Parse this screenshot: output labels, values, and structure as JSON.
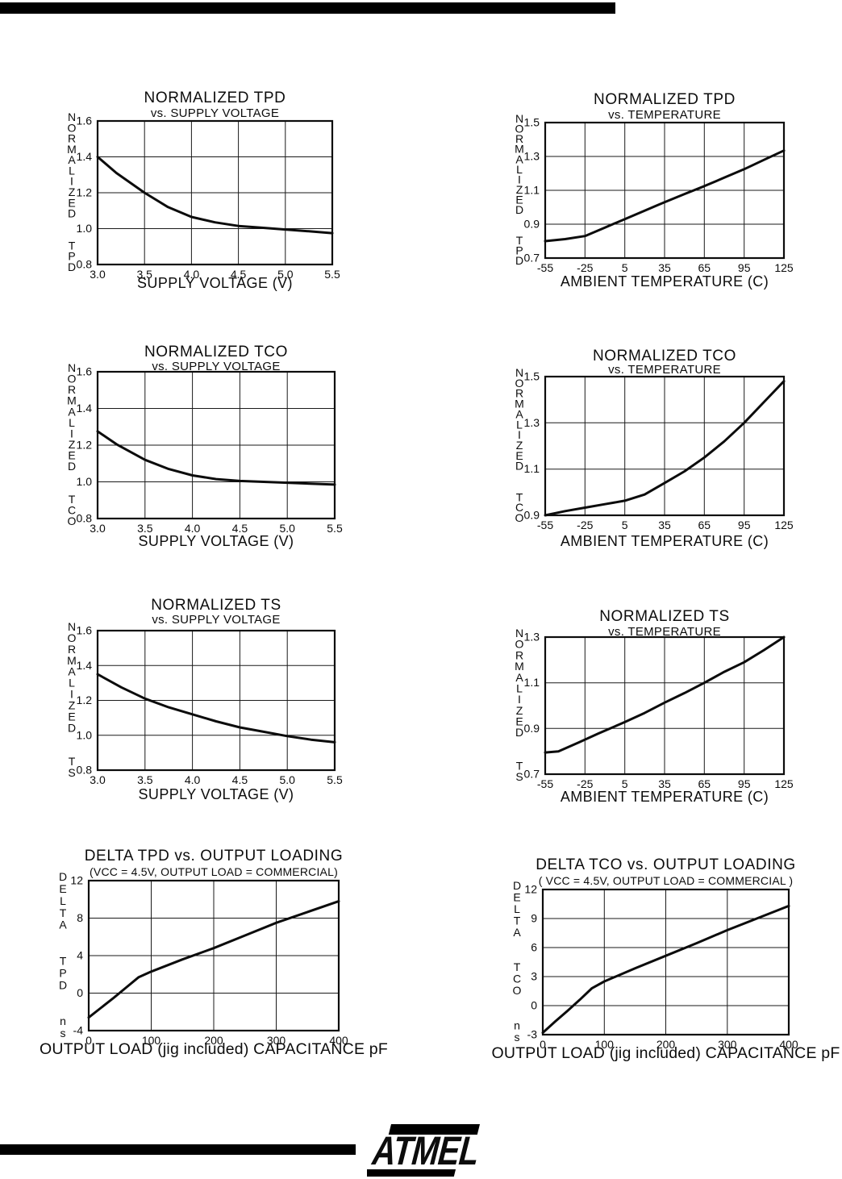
{
  "page": {
    "bg": "#ffffff",
    "ink": "#0c0c0c"
  },
  "top_bar": {
    "color": "#000000"
  },
  "bottom_bar": {
    "color": "#000000"
  },
  "logo": {
    "text": "ATMEL"
  },
  "chart_data": [
    {
      "type": "line",
      "title": "NORMALIZED TPD",
      "subtitle": "vs. SUPPLY VOLTAGE",
      "ylabel": "NORMALIZED TPD",
      "xlabel": "SUPPLY VOLTAGE (V)",
      "xlim": [
        3.0,
        5.5
      ],
      "ylim": [
        0.8,
        1.6
      ],
      "xticks": [
        3.0,
        3.5,
        4.0,
        4.5,
        5.0,
        5.5
      ],
      "xtick_labels": [
        "3.0",
        "3.5",
        "4.0",
        "4.5",
        "5.0",
        "5.5"
      ],
      "yticks": [
        1.6,
        1.4,
        1.2,
        1.0,
        0.8
      ],
      "ytick_labels": [
        "1.6",
        "1.4",
        "1.2",
        "1.0",
        "0.8"
      ],
      "grid": true,
      "legend": "none",
      "points": [
        [
          3.0,
          1.4
        ],
        [
          3.2,
          1.31
        ],
        [
          3.5,
          1.2
        ],
        [
          3.75,
          1.12
        ],
        [
          4.0,
          1.065
        ],
        [
          4.25,
          1.035
        ],
        [
          4.5,
          1.015
        ],
        [
          4.75,
          1.005
        ],
        [
          5.0,
          0.995
        ],
        [
          5.25,
          0.985
        ],
        [
          5.5,
          0.975
        ]
      ]
    },
    {
      "type": "line",
      "title": "NORMALIZED TPD",
      "subtitle": "vs. TEMPERATURE",
      "ylabel": "NORMALIZED TPD",
      "xlabel": "AMBIENT TEMPERATURE (C)",
      "xlim": [
        -55,
        125
      ],
      "ylim": [
        0.7,
        1.5
      ],
      "xticks": [
        -55,
        -25,
        5,
        35,
        65,
        95,
        125
      ],
      "xtick_labels": [
        "-55",
        "-25",
        "5",
        "35",
        "65",
        "95",
        "125"
      ],
      "yticks": [
        1.5,
        1.3,
        1.1,
        0.9,
        0.7
      ],
      "ytick_labels": [
        "1.5",
        "1.3",
        "1.1",
        "0.9",
        "0.7"
      ],
      "grid": true,
      "legend": "none",
      "points": [
        [
          -55,
          0.8
        ],
        [
          -40,
          0.812
        ],
        [
          -25,
          0.83
        ],
        [
          -10,
          0.88
        ],
        [
          5,
          0.93
        ],
        [
          20,
          0.98
        ],
        [
          35,
          1.03
        ],
        [
          50,
          1.078
        ],
        [
          65,
          1.125
        ],
        [
          80,
          1.175
        ],
        [
          95,
          1.225
        ],
        [
          110,
          1.28
        ],
        [
          125,
          1.335
        ]
      ]
    },
    {
      "type": "line",
      "title": "NORMALIZED TCO",
      "subtitle": "vs. SUPPLY VOLTAGE",
      "ylabel": "NORMALIZED TCO",
      "xlabel": "SUPPLY VOLTAGE (V)",
      "xlim": [
        3.0,
        5.5
      ],
      "ylim": [
        0.8,
        1.6
      ],
      "xticks": [
        3.0,
        3.5,
        4.0,
        4.5,
        5.0,
        5.5
      ],
      "xtick_labels": [
        "3.0",
        "3.5",
        "4.0",
        "4.5",
        "5.0",
        "5.5"
      ],
      "yticks": [
        1.6,
        1.4,
        1.2,
        1.0,
        0.8
      ],
      "ytick_labels": [
        "1.6",
        "1.4",
        "1.2",
        "1.0",
        "0.8"
      ],
      "grid": true,
      "legend": "none",
      "points": [
        [
          3.0,
          1.275
        ],
        [
          3.2,
          1.205
        ],
        [
          3.5,
          1.12
        ],
        [
          3.75,
          1.07
        ],
        [
          4.0,
          1.035
        ],
        [
          4.25,
          1.015
        ],
        [
          4.5,
          1.005
        ],
        [
          4.75,
          1.0
        ],
        [
          5.0,
          0.995
        ],
        [
          5.5,
          0.985
        ]
      ]
    },
    {
      "type": "line",
      "title": "NORMALIZED TCO",
      "subtitle": "vs. TEMPERATURE",
      "ylabel": "NORMALIZED TCO",
      "xlabel": "AMBIENT TEMPERATURE (C)",
      "xlim": [
        -55,
        125
      ],
      "ylim": [
        0.9,
        1.5
      ],
      "xticks": [
        -55,
        -25,
        5,
        35,
        65,
        95,
        125
      ],
      "xtick_labels": [
        "-55",
        "-25",
        "5",
        "35",
        "65",
        "95",
        "125"
      ],
      "yticks": [
        1.5,
        1.3,
        1.1,
        0.9
      ],
      "ytick_labels": [
        "1.5",
        "1.3",
        "1.1",
        "0.9"
      ],
      "grid": true,
      "legend": "none",
      "points": [
        [
          -55,
          0.9
        ],
        [
          -40,
          0.918
        ],
        [
          -25,
          0.933
        ],
        [
          -10,
          0.948
        ],
        [
          5,
          0.963
        ],
        [
          20,
          0.99
        ],
        [
          35,
          1.04
        ],
        [
          50,
          1.09
        ],
        [
          65,
          1.15
        ],
        [
          80,
          1.22
        ],
        [
          95,
          1.3
        ],
        [
          110,
          1.39
        ],
        [
          125,
          1.48
        ]
      ]
    },
    {
      "type": "line",
      "title": "NORMALIZED TS",
      "subtitle": "vs. SUPPLY VOLTAGE",
      "ylabel": "NORMALIZED TS",
      "xlabel": "SUPPLY VOLTAGE (V)",
      "xlim": [
        3.0,
        5.5
      ],
      "ylim": [
        0.8,
        1.6
      ],
      "xticks": [
        3.0,
        3.5,
        4.0,
        4.5,
        5.0,
        5.5
      ],
      "xtick_labels": [
        "3.0",
        "3.5",
        "4.0",
        "4.5",
        "5.0",
        "5.5"
      ],
      "yticks": [
        1.6,
        1.4,
        1.2,
        1.0,
        0.8
      ],
      "ytick_labels": [
        "1.6",
        "1.4",
        "1.2",
        "1.0",
        "0.8"
      ],
      "grid": true,
      "legend": "none",
      "points": [
        [
          3.0,
          1.35
        ],
        [
          3.25,
          1.275
        ],
        [
          3.5,
          1.21
        ],
        [
          3.75,
          1.16
        ],
        [
          4.0,
          1.12
        ],
        [
          4.25,
          1.08
        ],
        [
          4.5,
          1.045
        ],
        [
          4.75,
          1.02
        ],
        [
          5.0,
          0.995
        ],
        [
          5.25,
          0.975
        ],
        [
          5.5,
          0.96
        ]
      ]
    },
    {
      "type": "line",
      "title": "NORMALIZED TS",
      "subtitle": "vs. TEMPERATURE",
      "ylabel": "NORMALIZED TS",
      "xlabel": "AMBIENT TEMPERATURE (C)",
      "xlim": [
        -55,
        125
      ],
      "ylim": [
        0.7,
        1.3
      ],
      "xticks": [
        -55,
        -25,
        5,
        35,
        65,
        95,
        125
      ],
      "xtick_labels": [
        "-55",
        "-25",
        "5",
        "35",
        "65",
        "95",
        "125"
      ],
      "yticks": [
        1.3,
        1.1,
        0.9,
        0.7
      ],
      "ytick_labels": [
        "1.3",
        "1.1",
        "0.9",
        "0.7"
      ],
      "grid": true,
      "legend": "none",
      "points": [
        [
          -55,
          0.795
        ],
        [
          -45,
          0.8
        ],
        [
          -30,
          0.838
        ],
        [
          -15,
          0.878
        ],
        [
          5,
          0.928
        ],
        [
          20,
          0.968
        ],
        [
          35,
          1.013
        ],
        [
          50,
          1.055
        ],
        [
          65,
          1.1
        ],
        [
          80,
          1.148
        ],
        [
          95,
          1.19
        ],
        [
          110,
          1.243
        ],
        [
          125,
          1.3
        ]
      ]
    },
    {
      "type": "line",
      "title": "DELTA TPD vs. OUTPUT LOADING",
      "subtitle": "(VCC = 4.5V, OUTPUT LOAD = COMMERCIAL)",
      "ylabel": "DELTA TPD ns",
      "xlabel": "OUTPUT LOAD (jig included) CAPACITANCE pF",
      "xlim": [
        0,
        400
      ],
      "ylim": [
        -4,
        12
      ],
      "xticks": [
        0,
        100,
        200,
        300,
        400
      ],
      "xtick_labels": [
        "0",
        "100",
        "200",
        "300",
        "400"
      ],
      "yticks": [
        12,
        8,
        4,
        0,
        -4
      ],
      "ytick_labels": [
        "12",
        "8",
        "4",
        "0",
        "-4"
      ],
      "grid": true,
      "legend": "none",
      "points": [
        [
          0,
          -2.6
        ],
        [
          20,
          -1.55
        ],
        [
          40,
          -0.5
        ],
        [
          60,
          0.6
        ],
        [
          80,
          1.7
        ],
        [
          100,
          2.3
        ],
        [
          150,
          3.6
        ],
        [
          200,
          4.8
        ],
        [
          250,
          6.15
        ],
        [
          300,
          7.5
        ],
        [
          350,
          8.65
        ],
        [
          400,
          9.8
        ]
      ]
    },
    {
      "type": "line",
      "title": "DELTA TCO vs. OUTPUT LOADING",
      "subtitle": "( VCC = 4.5V, OUTPUT LOAD = COMMERCIAL )",
      "ylabel": "DELTA TCO ns",
      "xlabel": "OUTPUT LOAD (jig included) CAPACITANCE pF",
      "xlim": [
        0,
        400
      ],
      "ylim": [
        -3,
        12
      ],
      "xticks": [
        0,
        100,
        200,
        300,
        400
      ],
      "xtick_labels": [
        "0",
        "100",
        "200",
        "300",
        "400"
      ],
      "yticks": [
        12,
        9,
        6,
        3,
        0,
        -3
      ],
      "ytick_labels": [
        "12",
        "9",
        "6",
        "3",
        "0",
        "-3"
      ],
      "grid": true,
      "legend": "none",
      "points": [
        [
          0,
          -2.8
        ],
        [
          20,
          -1.65
        ],
        [
          40,
          -0.55
        ],
        [
          60,
          0.6
        ],
        [
          80,
          1.8
        ],
        [
          100,
          2.5
        ],
        [
          150,
          3.85
        ],
        [
          200,
          5.15
        ],
        [
          250,
          6.45
        ],
        [
          300,
          7.8
        ],
        [
          350,
          9.05
        ],
        [
          400,
          10.3
        ]
      ]
    }
  ]
}
